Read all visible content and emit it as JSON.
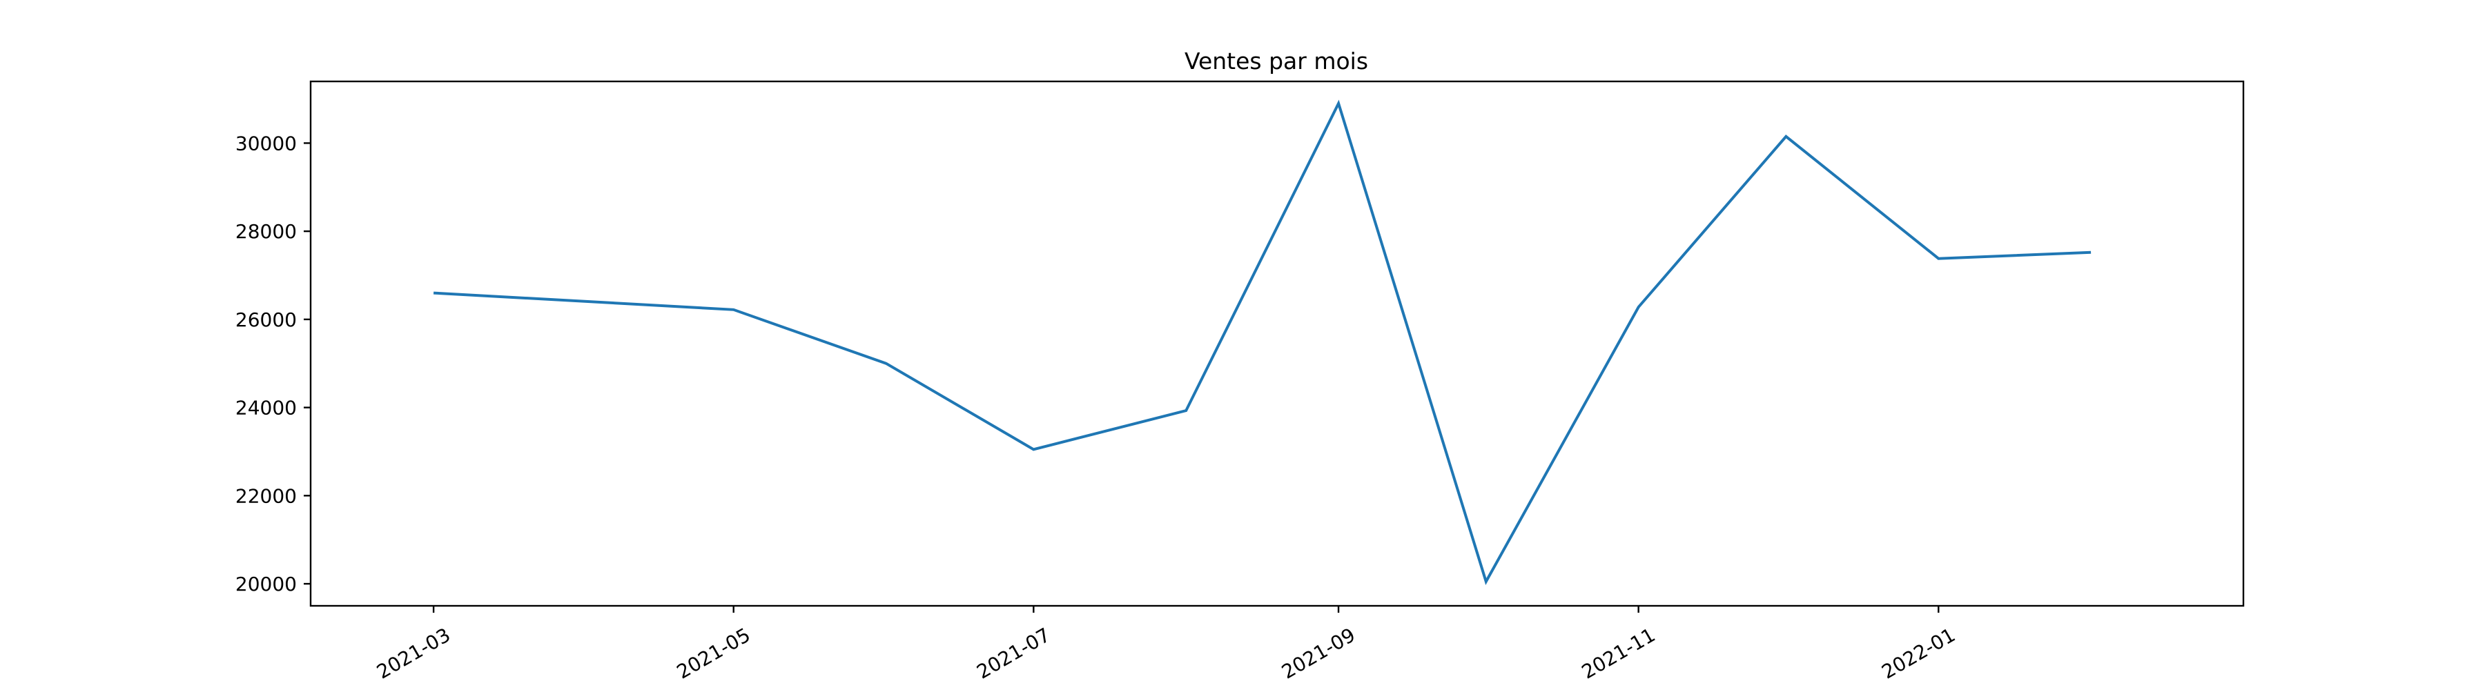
{
  "chart_data": {
    "type": "line",
    "title": "Ventes par mois",
    "xlabel": "",
    "ylabel": "",
    "x_axis_type": "date",
    "xlim": [
      "2021-02-04",
      "2022-03-04"
    ],
    "ylim": [
      19500,
      31400
    ],
    "grid": false,
    "legend": "none",
    "x_ticks": [
      "2021-03",
      "2021-05",
      "2021-07",
      "2021-09",
      "2021-11",
      "2022-01"
    ],
    "y_ticks": [
      20000,
      22000,
      24000,
      26000,
      28000,
      30000
    ],
    "series": [
      {
        "color": "#1f77b4",
        "x": [
          "2021-03-01",
          "2021-05-01",
          "2021-06-01",
          "2021-07-01",
          "2021-08-01",
          "2021-09-01",
          "2021-10-01",
          "2021-11-01",
          "2021-12-01",
          "2022-01-01",
          "2022-02-01"
        ],
        "values": [
          26600,
          26220,
          25000,
          23050,
          23930,
          30900,
          20050,
          26280,
          30150,
          27380,
          27520
        ]
      }
    ]
  }
}
